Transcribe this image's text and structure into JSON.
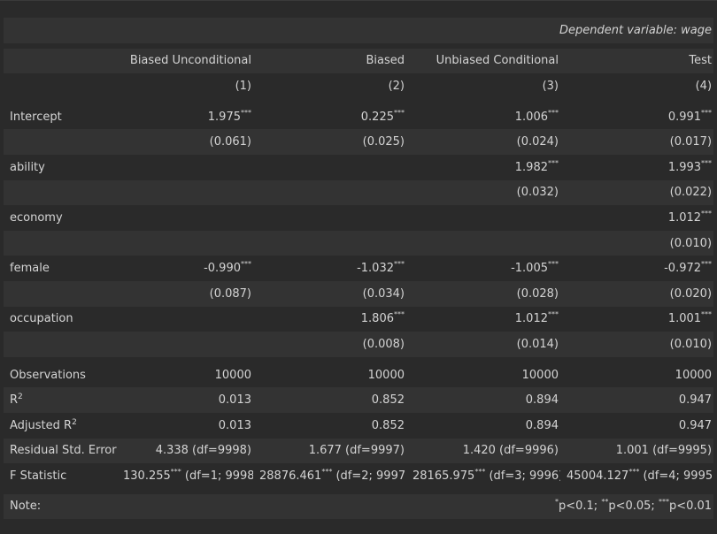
{
  "dependent_variable": "Dependent variable: wage",
  "columns": [
    "Biased Unconditional",
    "Biased",
    "Unbiased Conditional",
    "Test"
  ],
  "column_numbers": [
    "(1)",
    "(2)",
    "(3)",
    "(4)"
  ],
  "significance_marker": "***",
  "coefficients": [
    {
      "name": "Intercept",
      "est": [
        "1.975",
        "0.225",
        "1.006",
        "0.991"
      ],
      "stars": [
        "***",
        "***",
        "***",
        "***"
      ],
      "se": [
        "(0.061)",
        "(0.025)",
        "(0.024)",
        "(0.017)"
      ]
    },
    {
      "name": "ability",
      "est": [
        "",
        "",
        "1.982",
        "1.993"
      ],
      "stars": [
        "",
        "",
        "***",
        "***"
      ],
      "se": [
        "",
        "",
        "(0.032)",
        "(0.022)"
      ]
    },
    {
      "name": "economy",
      "est": [
        "",
        "",
        "",
        "1.012"
      ],
      "stars": [
        "",
        "",
        "",
        "***"
      ],
      "se": [
        "",
        "",
        "",
        "(0.010)"
      ]
    },
    {
      "name": "female",
      "est": [
        "-0.990",
        "-1.032",
        "-1.005",
        "-0.972"
      ],
      "stars": [
        "***",
        "***",
        "***",
        "***"
      ],
      "se": [
        "(0.087)",
        "(0.034)",
        "(0.028)",
        "(0.020)"
      ]
    },
    {
      "name": "occupation",
      "est": [
        "",
        "1.806",
        "1.012",
        "1.001"
      ],
      "stars": [
        "",
        "***",
        "***",
        "***"
      ],
      "se": [
        "",
        "(0.008)",
        "(0.014)",
        "(0.010)"
      ]
    }
  ],
  "stats": {
    "observations": {
      "label": "Observations",
      "values": [
        "10000",
        "10000",
        "10000",
        "10000"
      ]
    },
    "r2": {
      "label": "R",
      "sup": "2",
      "values": [
        "0.013",
        "0.852",
        "0.894",
        "0.947"
      ]
    },
    "adj_r2": {
      "label": "Adjusted R",
      "sup": "2",
      "values": [
        "0.013",
        "0.852",
        "0.894",
        "0.947"
      ]
    },
    "rse": {
      "label": "Residual Std. Error",
      "values": [
        "4.338 (df=9998)",
        "1.677 (df=9997)",
        "1.420 (df=9996)",
        "1.001 (df=9995)"
      ]
    },
    "fstat": {
      "label": "F Statistic",
      "values": [
        "130.255",
        "28876.461",
        "28165.975",
        "45004.127"
      ],
      "stars": [
        "***",
        "***",
        "***",
        "***"
      ],
      "df": [
        " (df=1; 9998)",
        " (df=2; 9997)",
        " (df=3; 9996)",
        " (df=4; 9995)"
      ]
    }
  },
  "note": {
    "label": "Note:",
    "p1_star": "*",
    "p1": "p<0.1; ",
    "p2_star": "**",
    "p2": "p<0.05; ",
    "p3_star": "***",
    "p3": "p<0.01"
  }
}
